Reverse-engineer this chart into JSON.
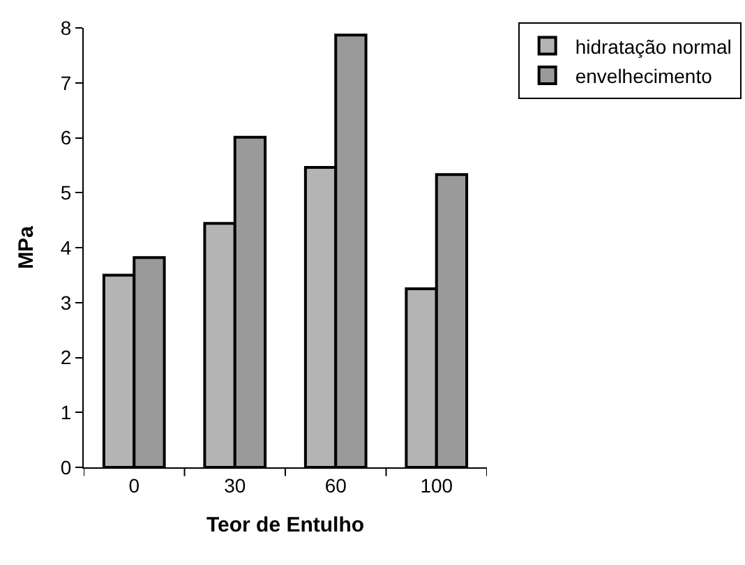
{
  "chart_data": {
    "type": "bar",
    "xlabel": "Teor de Entulho",
    "ylabel": "MPa",
    "categories": [
      "0",
      "30",
      "60",
      "100"
    ],
    "series": [
      {
        "name": "hidratação normal",
        "color": "#b4b4b4",
        "values": [
          3.5,
          4.44,
          5.46,
          3.25
        ]
      },
      {
        "name": "envelhecimento",
        "color": "#9a9a9a",
        "values": [
          3.82,
          6.01,
          7.87,
          5.33
        ]
      }
    ],
    "ylim": [
      0,
      8
    ],
    "yticks": [
      0,
      1,
      2,
      3,
      4,
      5,
      6,
      7,
      8
    ],
    "legend": "top right"
  }
}
